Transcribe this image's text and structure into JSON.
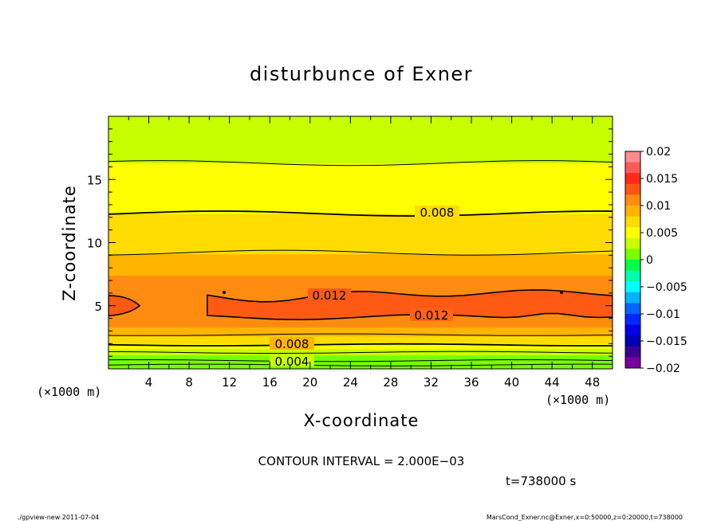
{
  "chart_data": {
    "type": "heatmap",
    "title": "disturbunce of Exner",
    "xlabel": "X-coordinate",
    "ylabel": "Z-coordinate",
    "x_unit": "(×1000 m)",
    "y_unit": "(×1000 m)",
    "xlim": [
      0,
      50
    ],
    "ylim": [
      0,
      20
    ],
    "x_ticks": [
      "4",
      "8",
      "12",
      "16",
      "20",
      "24",
      "28",
      "32",
      "36",
      "40",
      "44",
      "48"
    ],
    "y_ticks": [
      "5",
      "10",
      "15"
    ],
    "colorbar": {
      "ticks": [
        "0.02",
        "0.015",
        "0.01",
        "0.005",
        "0",
        "−0.005",
        "−0.01",
        "−0.015",
        "−0.02"
      ],
      "levels": [
        {
          "value": 0.019,
          "color": "#ff8c8c"
        },
        {
          "value": 0.017,
          "color": "#ff5a5a"
        },
        {
          "value": 0.015,
          "color": "#ff2a1a"
        },
        {
          "value": 0.013,
          "color": "#ff5514"
        },
        {
          "value": 0.011,
          "color": "#ff8c10"
        },
        {
          "value": 0.009,
          "color": "#ffb400"
        },
        {
          "value": 0.007,
          "color": "#ffdc00"
        },
        {
          "value": 0.005,
          "color": "#ffff00"
        },
        {
          "value": 0.003,
          "color": "#c8ff00"
        },
        {
          "value": 0.001,
          "color": "#78ff00"
        },
        {
          "value": -0.001,
          "color": "#00ff46"
        },
        {
          "value": -0.003,
          "color": "#00ffaa"
        },
        {
          "value": -0.005,
          "color": "#00ffff"
        },
        {
          "value": -0.007,
          "color": "#00b4ff"
        },
        {
          "value": -0.009,
          "color": "#0064ff"
        },
        {
          "value": -0.011,
          "color": "#0028ff"
        },
        {
          "value": -0.013,
          "color": "#0000e6"
        },
        {
          "value": -0.015,
          "color": "#0000b4"
        },
        {
          "value": -0.017,
          "color": "#3c0096"
        },
        {
          "value": -0.019,
          "color": "#78009f"
        }
      ]
    },
    "bands": [
      {
        "z_top": 1.1,
        "value": 0.001
      },
      {
        "z_top": 1.6,
        "value": 0.003
      },
      {
        "z_top": 2.0,
        "value": 0.005
      },
      {
        "z_top": 2.6,
        "value": 0.007
      },
      {
        "z_top": 3.3,
        "value": 0.009
      },
      {
        "z_top": 7.4,
        "value": 0.011
      },
      {
        "z_top": 9.1,
        "value": 0.009
      },
      {
        "z_top": 12.3,
        "value": 0.007
      },
      {
        "z_top": 16.3,
        "value": 0.005
      },
      {
        "z_top": 20.0,
        "value": 0.003
      }
    ],
    "contours": [
      {
        "value": 0.002,
        "z": 0.3
      },
      {
        "value": 0.004,
        "z": 0.65
      },
      {
        "value": 0.006,
        "z": 1.3
      },
      {
        "value": 0.008,
        "z": 1.9
      },
      {
        "value": 0.01,
        "z": 2.7
      },
      {
        "value": 0.01,
        "z": 9.2
      },
      {
        "value": 0.008,
        "z": 12.3
      },
      {
        "value": 0.006,
        "z": 16.3
      }
    ],
    "region_012": {
      "x_start": 9.8,
      "x_end": 50,
      "z_bottom": 4.1,
      "z_top": 6.0
    },
    "contour_labels": [
      "0.004",
      "0.008",
      "0.012",
      "0.012",
      "0.008"
    ],
    "contour_interval": "CONTOUR INTERVAL = 2.000E−03",
    "time": "t=738000 s"
  },
  "footer": {
    "left": "./gpview-new 2011-07-04",
    "right": "MarsCond_Exner.nc@Exner,x=0:50000,z=0:20000,t=738000"
  }
}
